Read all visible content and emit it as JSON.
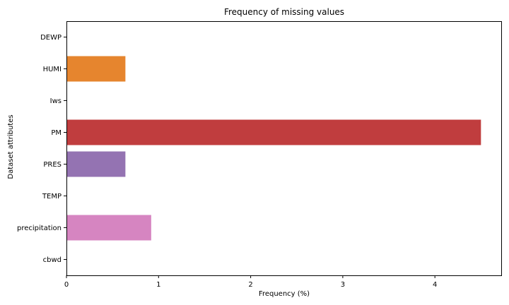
{
  "chart_data": {
    "type": "bar",
    "orientation": "horizontal",
    "title": "Frequency of missing values",
    "xlabel": "Frequency (%)",
    "ylabel": "Dataset attributes",
    "categories": [
      "DEWP",
      "HUMI",
      "Iws",
      "PM",
      "PRES",
      "TEMP",
      "precipitation",
      "cbwd"
    ],
    "values": [
      0.0,
      0.64,
      0.0,
      4.5,
      0.64,
      0.0,
      0.92,
      0.0
    ],
    "colors": [
      "#1f77b4",
      "#e6852e",
      "#3a9e3a",
      "#c03d3e",
      "#9473b2",
      "#8c564b",
      "#d685c1",
      "#7f7f7f"
    ],
    "xlim": [
      0,
      4.72
    ],
    "xticks": [
      "0",
      "1",
      "2",
      "3",
      "4"
    ],
    "grid": false,
    "legend": "none"
  }
}
